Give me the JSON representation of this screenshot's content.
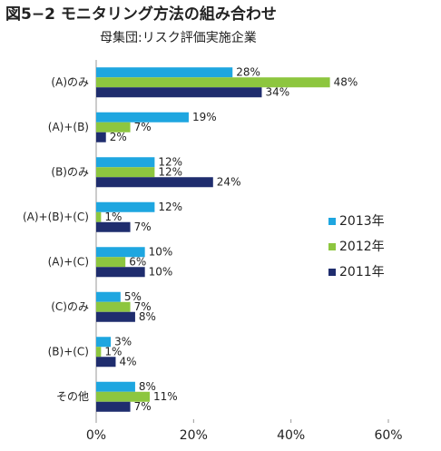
{
  "chart_data": {
    "type": "bar",
    "orientation": "horizontal",
    "title": "図5−2 モニタリング方法の組み合わせ",
    "subtitle": "母集団:リスク評価実施企業",
    "categories": [
      "(A)のみ",
      "(A)+(B)",
      "(B)のみ",
      "(A)+(B)+(C)",
      "(A)+(C)",
      "(C)のみ",
      "(B)+(C)",
      "その他"
    ],
    "series": [
      {
        "name": "2013年",
        "color": "#1ea6e0",
        "values": [
          28,
          19,
          12,
          12,
          10,
          5,
          3,
          8
        ],
        "value_labels": [
          "28%",
          "19%",
          "12%",
          "12%",
          "10%",
          "5%",
          "3%",
          "8%"
        ]
      },
      {
        "name": "2012年",
        "color": "#8dc63f",
        "values": [
          48,
          7,
          12,
          1,
          6,
          7,
          1,
          11
        ],
        "value_labels": [
          "48%",
          "7%",
          "12%",
          "1%",
          "6%",
          "7%",
          "1%",
          "11%"
        ]
      },
      {
        "name": "2011年",
        "color": "#1f2d6e",
        "values": [
          34,
          2,
          24,
          7,
          10,
          8,
          4,
          7
        ],
        "value_labels": [
          "34%",
          "2%",
          "24%",
          "7%",
          "10%",
          "8%",
          "4%",
          "7%"
        ]
      }
    ],
    "xlim": [
      0,
      60
    ],
    "xticks": [
      {
        "value": 0,
        "label": "0%"
      },
      {
        "value": 20,
        "label": "20%"
      },
      {
        "value": 40,
        "label": "40%"
      },
      {
        "value": 60,
        "label": "60%"
      }
    ],
    "legend": "right"
  }
}
